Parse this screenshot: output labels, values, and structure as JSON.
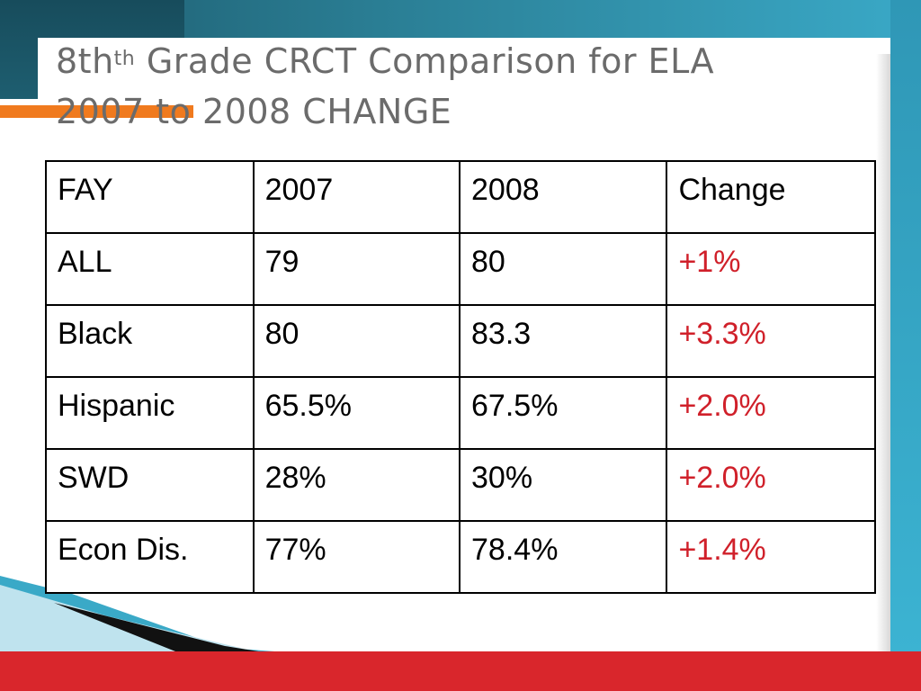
{
  "slide": {
    "title_prefix": "8th",
    "title_superscript": "th",
    "title_rest": " Grade CRCT Comparison for ELA",
    "title_line2": "2007 to 2008 CHANGE"
  },
  "table": {
    "headers": [
      "FAY",
      "2007",
      "2008",
      "Change"
    ],
    "rows": [
      [
        "ALL",
        "79",
        "80",
        "+1%"
      ],
      [
        "Black",
        "80",
        "83.3",
        "+3.3%"
      ],
      [
        "Hispanic",
        "65.5%",
        "67.5%",
        "+2.0%"
      ],
      [
        "SWD",
        "28%",
        "30%",
        "+2.0%"
      ],
      [
        "Econ Dis.",
        "77%",
        "78.4%",
        "+1.4%"
      ]
    ]
  },
  "colors": {
    "teal": "#2a7d93",
    "orange": "#f07a1e",
    "red": "#d9262c",
    "change_text": "#d0202a",
    "title_gray": "#6b6b6b"
  }
}
